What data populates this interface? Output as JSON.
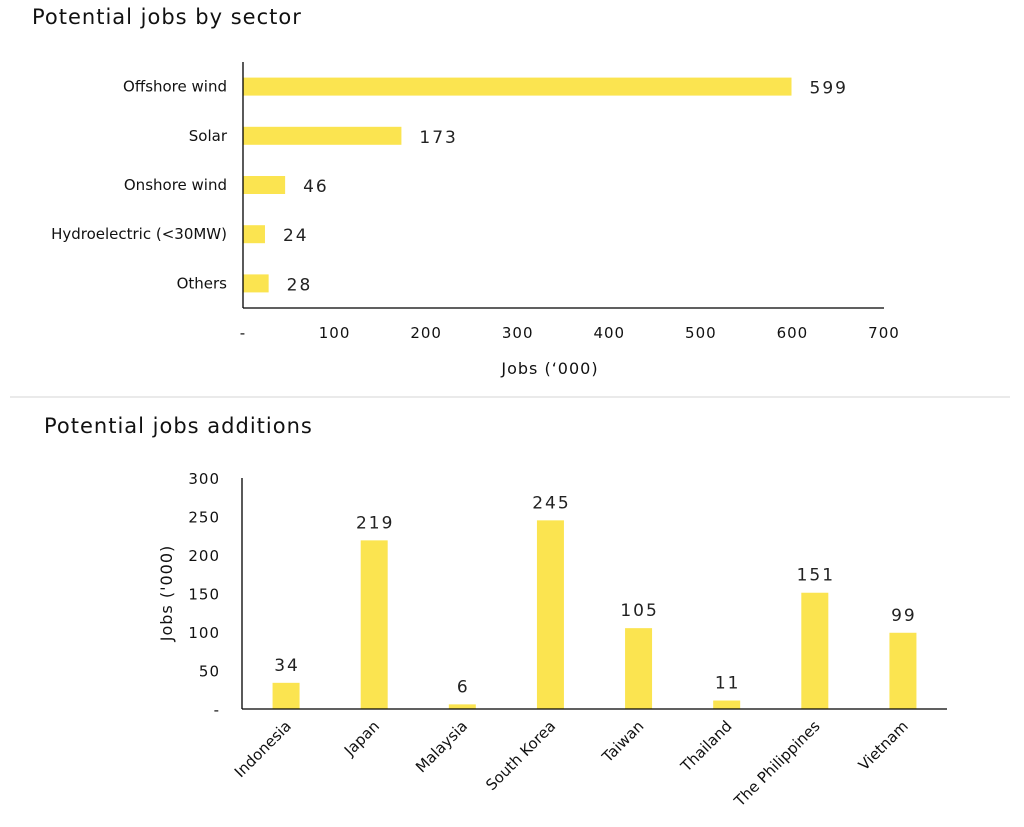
{
  "colors": {
    "bar": "#FBE450",
    "axis": "#000000",
    "divider": "#d0d0d0"
  },
  "chart_data": [
    {
      "type": "bar",
      "orientation": "horizontal",
      "title": "Potential jobs by sector",
      "categories": [
        "Offshore wind",
        "Solar",
        "Onshore wind",
        "Hydroelectric (<30MW)",
        "Others"
      ],
      "values": [
        599,
        173,
        46,
        24,
        28
      ],
      "xlabel": "Jobs (‘000)",
      "ylabel": "",
      "xlim": [
        0,
        700
      ],
      "ticks": [
        0,
        100,
        200,
        300,
        400,
        500,
        600,
        700
      ],
      "tick_labels": [
        "-",
        "100",
        "200",
        "300",
        "400",
        "500",
        "600",
        "700"
      ],
      "grid": false
    },
    {
      "type": "bar",
      "orientation": "vertical",
      "title": "Potential jobs additions",
      "categories": [
        "Indonesia",
        "Japan",
        "Malaysia",
        "South Korea",
        "Taiwan",
        "Thailand",
        "The Philippines",
        "Vietnam"
      ],
      "values": [
        34,
        219,
        6,
        245,
        105,
        11,
        151,
        99
      ],
      "xlabel": "",
      "ylabel": "Jobs ('000)",
      "ylim": [
        0,
        300
      ],
      "ticks": [
        0,
        50,
        100,
        150,
        200,
        250,
        300
      ],
      "tick_labels": [
        "-",
        "50",
        "100",
        "150",
        "200",
        "250",
        "300"
      ],
      "grid": false
    }
  ]
}
